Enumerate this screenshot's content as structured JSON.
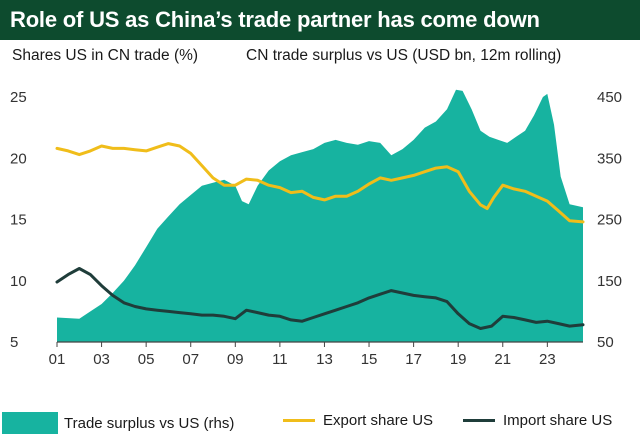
{
  "title": "Role of US as China’s trade partner has come down",
  "colors": {
    "title_bg": "#0d4b2e",
    "area": "#17b3a0",
    "export_line": "#f0bd1a",
    "import_line": "#1f3d3a",
    "axis": "#444444"
  },
  "chart_data": {
    "type": "area+line",
    "left_axis_label": "Shares US in CN trade (%)",
    "right_axis_label": "CN trade surplus vs US (USD bn, 12m rolling)",
    "left_ylim": [
      5,
      25
    ],
    "left_ticks": [
      "25",
      "20",
      "15",
      "10",
      "5"
    ],
    "right_ylim": [
      50,
      450
    ],
    "right_ticks": [
      "450",
      "350",
      "250",
      "150",
      "50"
    ],
    "xlim": [
      2001,
      2024.6
    ],
    "x_tick_labels": [
      "01",
      "03",
      "05",
      "07",
      "09",
      "11",
      "13",
      "15",
      "17",
      "19",
      "21",
      "23"
    ],
    "series": [
      {
        "name": "Trade surplus vs US (rhs)",
        "type": "area",
        "axis": "right",
        "x": [
          2001.0,
          2002.0,
          2002.5,
          2003.0,
          2003.5,
          2004.0,
          2004.5,
          2005.0,
          2005.5,
          2006.0,
          2006.5,
          2007.0,
          2007.5,
          2008.0,
          2008.5,
          2009.0,
          2009.3,
          2009.6,
          2010.0,
          2010.5,
          2011.0,
          2011.5,
          2012.0,
          2012.5,
          2013.0,
          2013.5,
          2014.0,
          2014.5,
          2015.0,
          2015.5,
          2016.0,
          2016.5,
          2017.0,
          2017.5,
          2018.0,
          2018.5,
          2018.9,
          2019.2,
          2019.6,
          2020.0,
          2020.4,
          2020.8,
          2021.2,
          2021.6,
          2022.0,
          2022.4,
          2022.8,
          2023.0,
          2023.3,
          2023.6,
          2024.0,
          2024.6
        ],
        "values": [
          90,
          88,
          100,
          112,
          130,
          150,
          175,
          205,
          235,
          255,
          275,
          290,
          305,
          310,
          315,
          305,
          280,
          275,
          305,
          330,
          345,
          355,
          360,
          365,
          375,
          380,
          375,
          372,
          378,
          375,
          355,
          365,
          380,
          400,
          410,
          430,
          462,
          460,
          430,
          395,
          385,
          380,
          375,
          385,
          395,
          420,
          450,
          455,
          405,
          320,
          275,
          270
        ]
      },
      {
        "name": "Export share US",
        "type": "line",
        "axis": "left",
        "x": [
          2001.0,
          2001.5,
          2002.0,
          2002.5,
          2003.0,
          2003.5,
          2004.0,
          2004.5,
          2005.0,
          2005.5,
          2006.0,
          2006.5,
          2007.0,
          2007.5,
          2008.0,
          2008.5,
          2009.0,
          2009.5,
          2010.0,
          2010.5,
          2011.0,
          2011.5,
          2012.0,
          2012.5,
          2013.0,
          2013.5,
          2014.0,
          2014.5,
          2015.0,
          2015.5,
          2016.0,
          2016.5,
          2017.0,
          2017.5,
          2018.0,
          2018.5,
          2019.0,
          2019.5,
          2020.0,
          2020.3,
          2020.6,
          2021.0,
          2021.5,
          2022.0,
          2022.5,
          2023.0,
          2023.5,
          2024.0,
          2024.6
        ],
        "values": [
          20.8,
          20.6,
          20.3,
          20.6,
          21.0,
          20.8,
          20.8,
          20.7,
          20.6,
          20.9,
          21.2,
          21.0,
          20.4,
          19.4,
          18.4,
          17.8,
          17.8,
          18.3,
          18.2,
          17.8,
          17.6,
          17.2,
          17.3,
          16.8,
          16.6,
          16.9,
          16.9,
          17.3,
          17.9,
          18.4,
          18.2,
          18.4,
          18.6,
          18.9,
          19.2,
          19.3,
          18.9,
          17.3,
          16.2,
          15.9,
          16.8,
          17.8,
          17.5,
          17.3,
          16.9,
          16.5,
          15.7,
          14.9,
          14.8
        ]
      },
      {
        "name": "Import share US",
        "type": "line",
        "axis": "left",
        "x": [
          2001.0,
          2001.5,
          2002.0,
          2002.5,
          2003.0,
          2003.5,
          2004.0,
          2004.5,
          2005.0,
          2005.5,
          2006.0,
          2006.5,
          2007.0,
          2007.5,
          2008.0,
          2008.5,
          2009.0,
          2009.5,
          2010.0,
          2010.5,
          2011.0,
          2011.5,
          2012.0,
          2012.5,
          2013.0,
          2013.5,
          2014.0,
          2014.5,
          2015.0,
          2015.5,
          2016.0,
          2016.5,
          2017.0,
          2017.5,
          2018.0,
          2018.5,
          2019.0,
          2019.5,
          2020.0,
          2020.5,
          2021.0,
          2021.5,
          2022.0,
          2022.5,
          2023.0,
          2023.5,
          2024.0,
          2024.6
        ],
        "values": [
          9.9,
          10.5,
          11.0,
          10.5,
          9.6,
          8.8,
          8.2,
          7.9,
          7.7,
          7.6,
          7.5,
          7.4,
          7.3,
          7.2,
          7.2,
          7.1,
          6.9,
          7.6,
          7.4,
          7.2,
          7.1,
          6.8,
          6.7,
          7.0,
          7.3,
          7.6,
          7.9,
          8.2,
          8.6,
          8.9,
          9.2,
          9.0,
          8.8,
          8.7,
          8.6,
          8.3,
          7.3,
          6.5,
          6.1,
          6.3,
          7.1,
          7.0,
          6.8,
          6.6,
          6.7,
          6.5,
          6.3,
          6.4
        ]
      }
    ]
  }
}
